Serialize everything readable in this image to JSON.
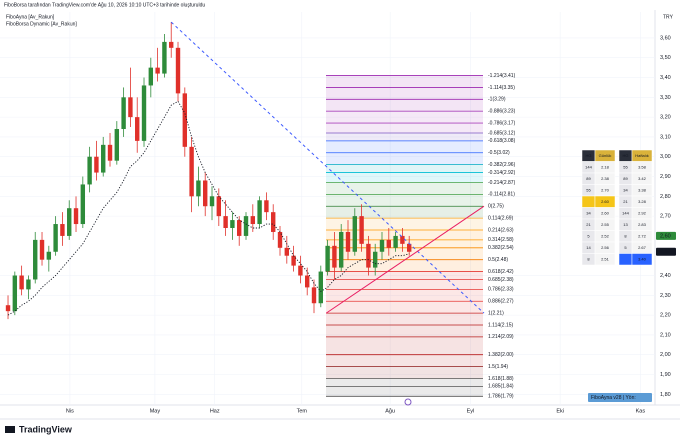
{
  "chart_data": {
    "type": "candlestick",
    "caption": "FiboBorsa tarafından TradingView.com'de Ağu 10, 2026 10:10 UTC+3 tarihinde oluşturuldu",
    "indicators": [
      "FiboAyna [Av_Rakun]",
      "FiboBorsa Dynamic [Av_Rakun]"
    ],
    "currency": "TRY",
    "brand": "TradingView",
    "badge": "FiboAyna v28 | Yön:",
    "up_color": "#2e8b3a",
    "down_color": "#e0302a",
    "xlim": [
      -1.18,
      95.15
    ],
    "ylim": [
      1.746,
      3.731
    ],
    "xticks": [
      {
        "value": 9.1,
        "label": "Nis"
      },
      {
        "value": 21.6,
        "label": "May"
      },
      {
        "value": 30.4,
        "label": "Haz"
      },
      {
        "value": 43.2,
        "label": "Tem"
      },
      {
        "value": 56.2,
        "label": "Ağu"
      },
      {
        "value": 68,
        "label": "Eyl"
      },
      {
        "value": 81.2,
        "label": "Eki"
      },
      {
        "value": 93,
        "label": "Kas"
      }
    ],
    "yticks": [
      {
        "value": 3.6,
        "label": "3,60"
      },
      {
        "value": 3.5,
        "label": "3,50"
      },
      {
        "value": 3.4,
        "label": "3,40"
      },
      {
        "value": 3.3,
        "label": "3,30"
      },
      {
        "value": 3.2,
        "label": "3,20"
      },
      {
        "value": 3.1,
        "label": "3,10"
      },
      {
        "value": 3.0,
        "label": "3,00"
      },
      {
        "value": 2.9,
        "label": "2,90"
      },
      {
        "value": 2.8,
        "label": "2,80"
      },
      {
        "value": 2.7,
        "label": "2,70"
      },
      {
        "value": 2.4,
        "label": "2,40"
      },
      {
        "value": 2.3,
        "label": "2,30"
      },
      {
        "value": 2.2,
        "label": "2,20"
      },
      {
        "value": 2.1,
        "label": "2,10"
      },
      {
        "value": 2.0,
        "label": "2,00"
      },
      {
        "value": 1.9,
        "label": "1,90"
      },
      {
        "value": 1.8,
        "label": "1,80"
      }
    ],
    "price_labels": [
      {
        "value": 2.6,
        "label": "2,60",
        "color": "#2e8b3a"
      },
      {
        "value": 2.52,
        "label": "2,52",
        "color": "#131722"
      }
    ],
    "ohlc": [
      [
        2.25,
        2.3,
        2.18,
        2.22
      ],
      [
        2.22,
        2.42,
        2.2,
        2.4
      ],
      [
        2.4,
        2.45,
        2.3,
        2.33
      ],
      [
        2.33,
        2.4,
        2.28,
        2.38
      ],
      [
        2.38,
        2.62,
        2.36,
        2.58
      ],
      [
        2.58,
        2.62,
        2.45,
        2.48
      ],
      [
        2.48,
        2.55,
        2.42,
        2.52
      ],
      [
        2.52,
        2.7,
        2.5,
        2.66
      ],
      [
        2.66,
        2.72,
        2.55,
        2.6
      ],
      [
        2.6,
        2.78,
        2.58,
        2.74
      ],
      [
        2.74,
        2.8,
        2.62,
        2.66
      ],
      [
        2.66,
        2.9,
        2.64,
        2.86
      ],
      [
        2.86,
        3.05,
        2.82,
        3.0
      ],
      [
        3.0,
        3.08,
        2.88,
        2.92
      ],
      [
        2.92,
        3.1,
        2.9,
        3.06
      ],
      [
        3.06,
        3.12,
        2.95,
        2.98
      ],
      [
        2.98,
        3.18,
        2.96,
        3.14
      ],
      [
        3.14,
        3.35,
        3.1,
        3.3
      ],
      [
        3.3,
        3.45,
        3.15,
        3.2
      ],
      [
        3.2,
        3.3,
        3.02,
        3.08
      ],
      [
        3.08,
        3.4,
        3.05,
        3.36
      ],
      [
        3.36,
        3.5,
        3.3,
        3.45
      ],
      [
        3.45,
        3.55,
        3.38,
        3.42
      ],
      [
        3.42,
        3.62,
        3.4,
        3.58
      ],
      [
        3.58,
        3.68,
        3.5,
        3.55
      ],
      [
        3.55,
        3.58,
        3.28,
        3.32
      ],
      [
        3.32,
        3.35,
        3.0,
        3.05
      ],
      [
        3.05,
        3.1,
        2.72,
        2.8
      ],
      [
        2.8,
        2.95,
        2.75,
        2.88
      ],
      [
        2.88,
        2.92,
        2.7,
        2.75
      ],
      [
        2.75,
        2.85,
        2.68,
        2.8
      ],
      [
        2.8,
        2.84,
        2.65,
        2.7
      ],
      [
        2.7,
        2.78,
        2.6,
        2.64
      ],
      [
        2.64,
        2.72,
        2.58,
        2.68
      ],
      [
        2.68,
        2.7,
        2.55,
        2.6
      ],
      [
        2.6,
        2.72,
        2.58,
        2.7
      ],
      [
        2.7,
        2.76,
        2.62,
        2.66
      ],
      [
        2.66,
        2.8,
        2.64,
        2.78
      ],
      [
        2.78,
        2.82,
        2.68,
        2.72
      ],
      [
        2.72,
        2.76,
        2.58,
        2.62
      ],
      [
        2.62,
        2.65,
        2.5,
        2.54
      ],
      [
        2.54,
        2.6,
        2.46,
        2.5
      ],
      [
        2.5,
        2.55,
        2.42,
        2.45
      ],
      [
        2.45,
        2.5,
        2.36,
        2.4
      ],
      [
        2.4,
        2.44,
        2.3,
        2.34
      ],
      [
        2.34,
        2.38,
        2.21,
        2.26
      ],
      [
        2.26,
        2.45,
        2.24,
        2.42
      ],
      [
        2.42,
        2.58,
        2.4,
        2.55
      ],
      [
        2.55,
        2.62,
        2.38,
        2.44
      ],
      [
        2.44,
        2.66,
        2.42,
        2.62
      ],
      [
        2.62,
        2.68,
        2.48,
        2.52
      ],
      [
        2.52,
        2.74,
        2.5,
        2.7
      ],
      [
        2.7,
        2.76,
        2.52,
        2.56
      ],
      [
        2.56,
        2.6,
        2.4,
        2.44
      ],
      [
        2.44,
        2.56,
        2.4,
        2.52
      ],
      [
        2.52,
        2.62,
        2.48,
        2.58
      ],
      [
        2.58,
        2.64,
        2.5,
        2.54
      ],
      [
        2.54,
        2.62,
        2.52,
        2.6
      ],
      [
        2.6,
        2.64,
        2.52,
        2.56
      ],
      [
        2.56,
        2.6,
        2.5,
        2.52
      ]
    ],
    "dynamic": [
      2.2,
      2.22,
      2.25,
      2.27,
      2.3,
      2.34,
      2.37,
      2.4,
      2.44,
      2.48,
      2.52,
      2.56,
      2.62,
      2.68,
      2.74,
      2.78,
      2.82,
      2.88,
      2.95,
      2.98,
      3.02,
      3.08,
      3.14,
      3.2,
      3.26,
      3.28,
      3.22,
      3.1,
      3.0,
      2.92,
      2.86,
      2.8,
      2.76,
      2.72,
      2.68,
      2.66,
      2.64,
      2.64,
      2.66,
      2.66,
      2.62,
      2.56,
      2.5,
      2.46,
      2.42,
      2.36,
      2.32,
      2.34,
      2.38,
      2.4,
      2.44,
      2.46,
      2.48,
      2.48,
      2.46,
      2.46,
      2.48,
      2.5,
      2.5,
      2.51
    ],
    "trendlines": [
      {
        "x": [
          24,
          70
        ],
        "values": [
          3.68,
          2.21
        ],
        "color": "#3d5afe",
        "dashed": true
      },
      {
        "x": [
          46.8,
          70
        ],
        "values": [
          2.21,
          2.75
        ],
        "color": "#e91e63",
        "dashed": false
      }
    ],
    "fib_levels": [
      {
        "value": 3.41,
        "label": "-1.214(3.41)",
        "color": "#9c27b0"
      },
      {
        "value": 3.35,
        "label": "-1.114(3.35)",
        "color": "#9c27b0"
      },
      {
        "value": 3.29,
        "label": "-1(3.29)",
        "color": "#9c27b0"
      },
      {
        "value": 3.23,
        "label": "-0.886(3.23)",
        "color": "#ab47bc"
      },
      {
        "value": 3.17,
        "label": "-0.786(3.17)",
        "color": "#ab47bc"
      },
      {
        "value": 3.12,
        "label": "-0.685(3.12)",
        "color": "#7e57c2"
      },
      {
        "value": 3.08,
        "label": "-0.618(3.08)",
        "color": "#2962ff"
      },
      {
        "value": 3.02,
        "label": "-0.5(3.02)",
        "color": "#2962ff"
      },
      {
        "value": 2.96,
        "label": "-0.382(2.96)",
        "color": "#00acc1"
      },
      {
        "value": 2.92,
        "label": "-0.314(2.92)",
        "color": "#00bcd4"
      },
      {
        "value": 2.87,
        "label": "-0.214(2.87)",
        "color": "#43a047"
      },
      {
        "value": 2.81,
        "label": "-0.114(2.81)",
        "color": "#43a047"
      },
      {
        "value": 2.75,
        "label": "0(2.75)",
        "color": "#2e7d32"
      },
      {
        "value": 2.69,
        "label": "0.114(2.69)",
        "color": "#f9a825"
      },
      {
        "value": 2.63,
        "label": "0.214(2.63)",
        "color": "#ff9800"
      },
      {
        "value": 2.58,
        "label": "0.314(2.58)",
        "color": "#ff9800"
      },
      {
        "value": 2.54,
        "label": "0.382(2.54)",
        "color": "#fb8c00"
      },
      {
        "value": 2.48,
        "label": "0.5(2.48)",
        "color": "#f57c00"
      },
      {
        "value": 2.42,
        "label": "0.618(2.42)",
        "color": "#e53935"
      },
      {
        "value": 2.38,
        "label": "0.685(2.38)",
        "color": "#e53935"
      },
      {
        "value": 2.33,
        "label": "0.786(2.33)",
        "color": "#e53935"
      },
      {
        "value": 2.27,
        "label": "0.886(2.27)",
        "color": "#e53935"
      },
      {
        "value": 2.21,
        "label": "1(2.21)",
        "color": "#c62828"
      },
      {
        "value": 2.15,
        "label": "1.114(2.15)",
        "color": "#b71c1c"
      },
      {
        "value": 2.09,
        "label": "1.214(2.09)",
        "color": "#b71c1c"
      },
      {
        "value": 2.0,
        "label": "1.382(2.00)",
        "color": "#b71c1c"
      },
      {
        "value": 1.94,
        "label": "1.5(1.94)",
        "color": "#8e1b1b"
      },
      {
        "value": 1.88,
        "label": "1.618(1.88)",
        "color": "#555"
      },
      {
        "value": 1.84,
        "label": "1.685(1.84)",
        "color": "#555"
      },
      {
        "value": 1.79,
        "label": "1.786(1.79)",
        "color": "#555"
      }
    ],
    "tables": [
      {
        "header": [
          "HG",
          "Günlük"
        ],
        "highlight_row": 3,
        "highlight_color": "#f5c518",
        "rows": [
          [
            "144",
            "2.18"
          ],
          [
            "89",
            "2.38"
          ],
          [
            "55",
            "2.70"
          ],
          [
            "",
            "2.60"
          ],
          [
            "34",
            "2.60"
          ],
          [
            "21",
            "2.55"
          ],
          [
            "5",
            "2.52"
          ],
          [
            "14",
            "2.56"
          ],
          [
            "8",
            "2.51"
          ]
        ]
      },
      {
        "header": [
          "HG",
          "Haftalık"
        ],
        "highlight_row": 8,
        "highlight_color": "#2962ff",
        "rows": [
          [
            "55",
            "3.58"
          ],
          [
            "89",
            "3.42"
          ],
          [
            "34",
            "3.38"
          ],
          [
            "21",
            "3.28"
          ],
          [
            "144",
            "2.92"
          ],
          [
            "13",
            "2.83"
          ],
          [
            "8",
            "2.72"
          ],
          [
            "5",
            "2.67"
          ],
          [
            "",
            "3.40"
          ]
        ]
      }
    ]
  }
}
